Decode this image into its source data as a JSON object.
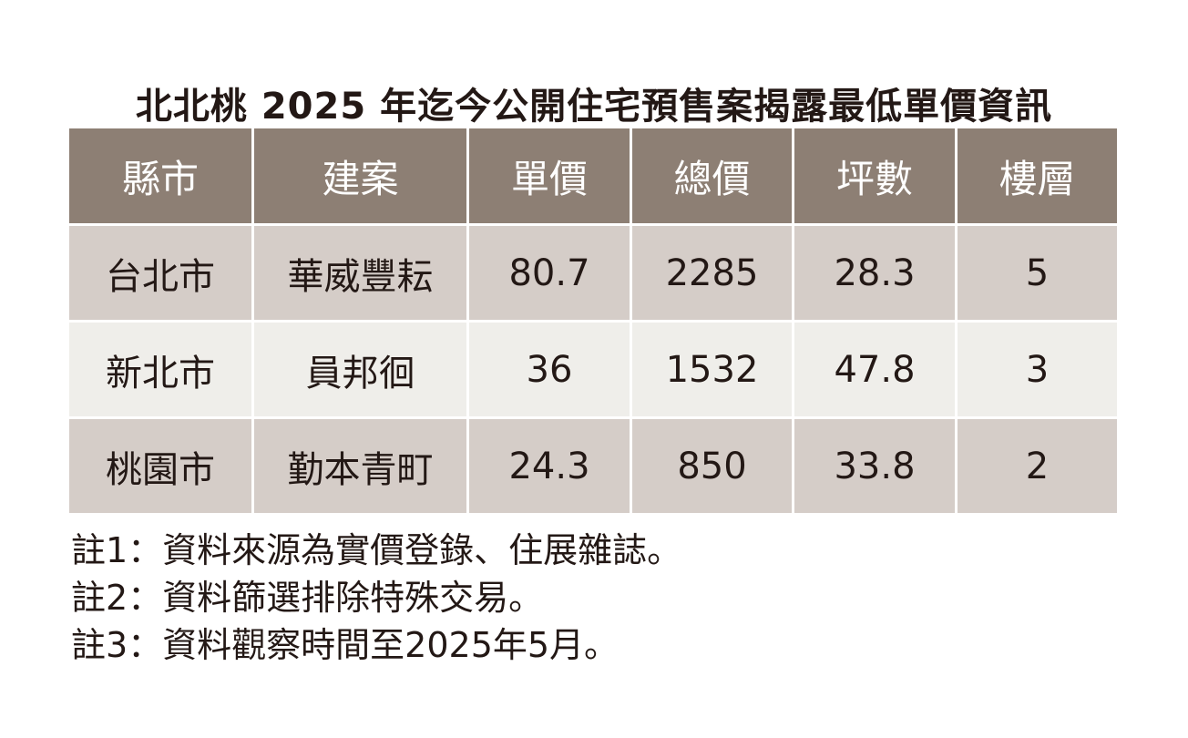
{
  "title": "北北桃 2025 年迄今公開住宅預售案揭露最低單價資訊",
  "colors": {
    "header_bg": "#8d7f74",
    "row_dark": "#d5cdc8",
    "row_light": "#efeeea"
  },
  "table": {
    "headers": [
      "縣市",
      "建案",
      "單價",
      "總價",
      "坪數",
      "樓層"
    ],
    "rows": [
      [
        "台北市",
        "華威豐耘",
        "80.7",
        "2285",
        "28.3",
        "5"
      ],
      [
        "新北市",
        "員邦徊",
        "36",
        "1532",
        "47.8",
        "3"
      ],
      [
        "桃園市",
        "勤本青町",
        "24.3",
        "850",
        "33.8",
        "2"
      ]
    ]
  },
  "notes": [
    "註1：資料來源為實價登錄、住展雜誌。",
    "註2：資料篩選排除特殊交易。",
    "註3：資料觀察時間至2025年5月。"
  ]
}
